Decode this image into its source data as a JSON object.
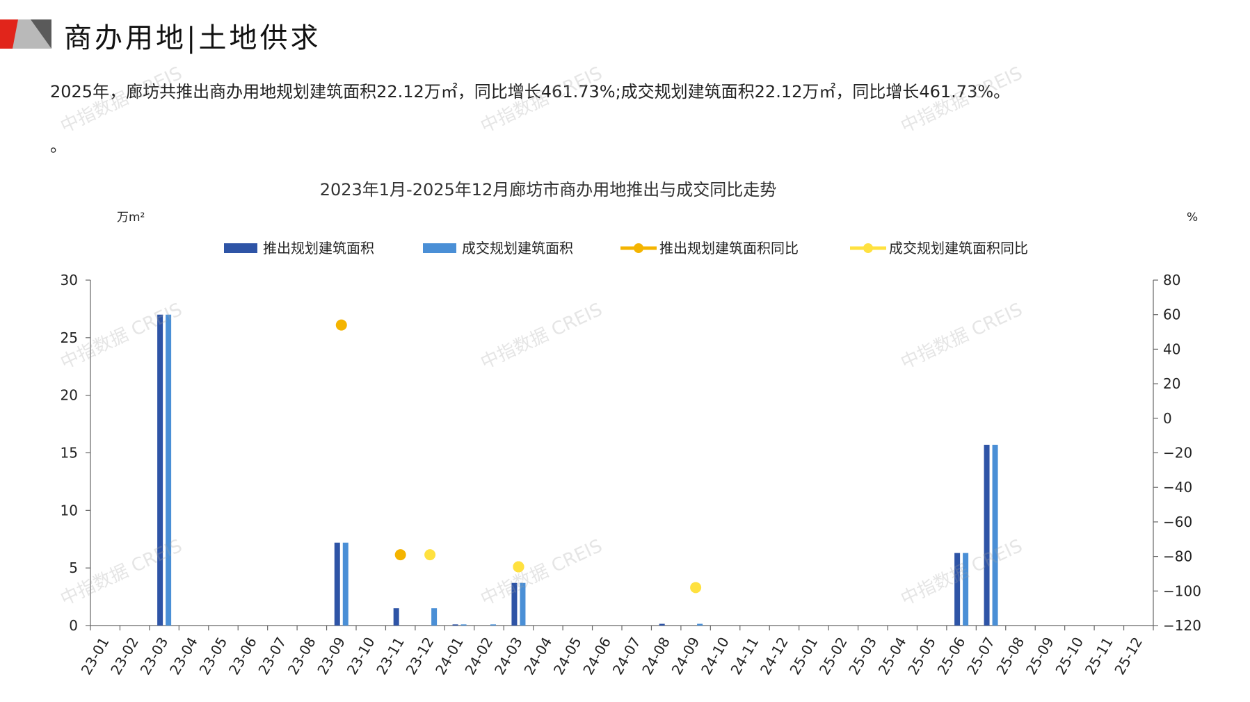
{
  "header": {
    "title": "商办用地|土地供求"
  },
  "summary": {
    "line1": "2025年，廊坊共推出商办用地规划建筑面积22.12万㎡，同比增长461.73%;成交规划建筑面积22.12万㎡，同比增长461.73%。",
    "line2": "。"
  },
  "watermark": "中指数据 CREIS",
  "colors": {
    "accent_red": "#e1251b",
    "supply_bar": "#2e54a6",
    "deal_bar": "#4a8fd6",
    "supply_yoy": "#f4b400",
    "deal_yoy": "#ffe13f"
  },
  "chart_data": {
    "type": "bar",
    "title": "2023年1月-2025年12月廊坊市商办用地推出与成交同比走势",
    "ylabel": "万m²",
    "y2label": "%",
    "ylim": [
      0,
      30
    ],
    "yticks": [
      0,
      5,
      10,
      15,
      20,
      25,
      30
    ],
    "y2lim": [
      -120,
      80
    ],
    "y2ticks": [
      -120,
      -100,
      -80,
      -60,
      -40,
      -20,
      0,
      20,
      40,
      60,
      80
    ],
    "legend_position": "top-center",
    "grid": false,
    "categories": [
      "23-01",
      "23-02",
      "23-03",
      "23-04",
      "23-05",
      "23-06",
      "23-07",
      "23-08",
      "23-09",
      "23-10",
      "23-11",
      "23-12",
      "24-01",
      "24-02",
      "24-03",
      "24-04",
      "24-05",
      "24-06",
      "24-07",
      "24-08",
      "24-09",
      "24-10",
      "24-11",
      "24-12",
      "25-01",
      "25-02",
      "25-03",
      "25-04",
      "25-05",
      "25-06",
      "25-07",
      "25-08",
      "25-09",
      "25-10",
      "25-11",
      "25-12"
    ],
    "series": [
      {
        "name": "推出规划建筑面积",
        "kind": "bar",
        "axis": "left",
        "values": [
          0,
          0,
          27.0,
          0,
          0,
          0,
          0,
          0,
          7.2,
          0,
          1.5,
          0,
          0.1,
          0,
          3.7,
          0,
          0,
          0,
          0,
          0.15,
          0,
          0,
          0,
          0,
          0,
          0,
          0,
          0,
          0,
          6.3,
          15.7,
          0,
          0,
          0,
          0,
          0
        ]
      },
      {
        "name": "成交规划建筑面积",
        "kind": "bar",
        "axis": "left",
        "values": [
          0,
          0,
          27.0,
          0,
          0,
          0,
          0,
          0,
          7.2,
          0,
          0,
          1.5,
          0.1,
          0.1,
          3.7,
          0,
          0,
          0,
          0,
          0,
          0.15,
          0,
          0,
          0,
          0,
          0,
          0,
          0,
          0,
          6.3,
          15.7,
          0,
          0,
          0,
          0,
          0
        ]
      },
      {
        "name": "推出规划建筑面积同比",
        "kind": "point",
        "axis": "right",
        "values": [
          null,
          null,
          null,
          null,
          null,
          null,
          null,
          null,
          54,
          null,
          -79,
          null,
          null,
          null,
          -86,
          null,
          null,
          null,
          null,
          null,
          null,
          null,
          null,
          null,
          null,
          null,
          null,
          null,
          null,
          null,
          null,
          null,
          null,
          null,
          null,
          null
        ]
      },
      {
        "name": "成交规划建筑面积同比",
        "kind": "point",
        "axis": "right",
        "values": [
          null,
          null,
          null,
          null,
          null,
          null,
          null,
          null,
          null,
          null,
          null,
          -79,
          null,
          null,
          -86,
          null,
          null,
          null,
          null,
          null,
          -98,
          null,
          null,
          null,
          null,
          null,
          null,
          null,
          null,
          null,
          null,
          null,
          null,
          null,
          null,
          null
        ]
      }
    ]
  }
}
